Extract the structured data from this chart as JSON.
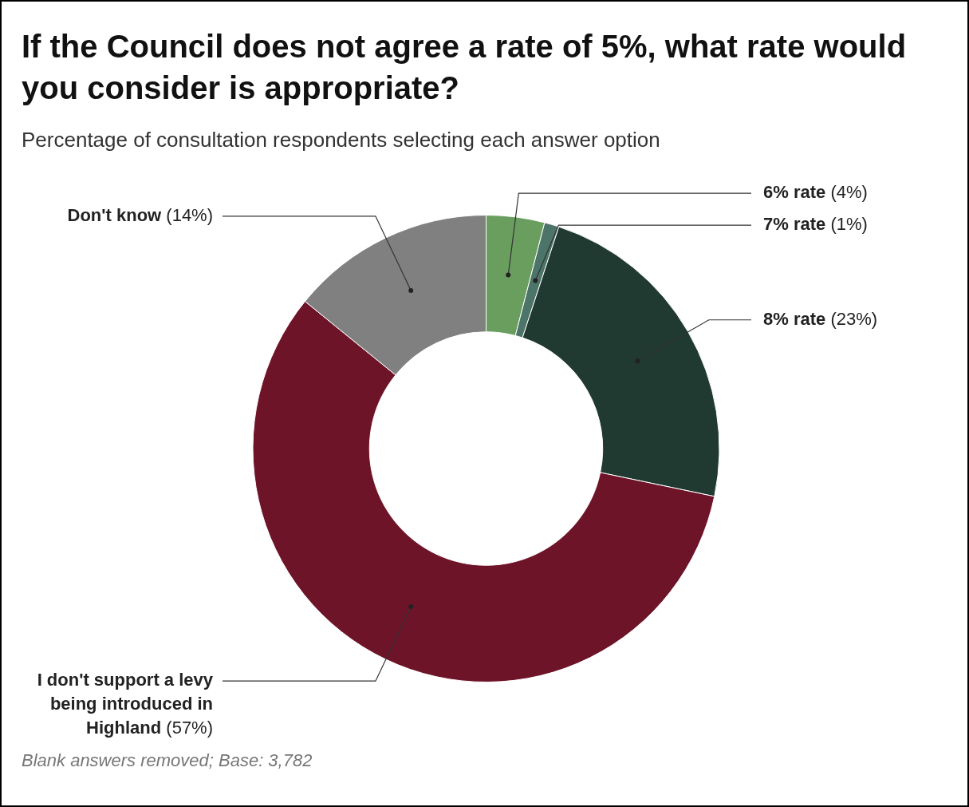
{
  "chart_data": {
    "type": "donut",
    "title": "If the Council does not agree a rate of 5%, what rate would you consider is appropriate?",
    "subtitle": "Percentage of consultation respondents selecting each answer option",
    "categories": [
      "6% rate",
      "7% rate",
      "8% rate",
      "I don't support a levy being introduced in Highland",
      "Don't know"
    ],
    "values": [
      4,
      1,
      23,
      57,
      14
    ],
    "value_labels": [
      "(4%)",
      "(1%)",
      "(23%)",
      "(57%)",
      "(14%)"
    ],
    "colors": [
      "#6a9e5f",
      "#4d7469",
      "#203a31",
      "#6e1429",
      "#808080"
    ],
    "annotations": [
      "Blank answers removed; Base: 3,782"
    ]
  }
}
